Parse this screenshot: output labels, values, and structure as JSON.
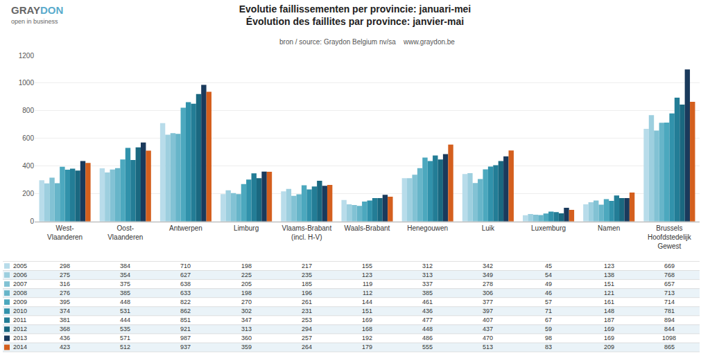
{
  "chart_data": {
    "type": "bar",
    "title": "Evolutie faillissementen per provincie: januari-mei\nÉvolution des faillites par province: janvier-mai",
    "subtitle": "bron / source: Graydon Belgium nv/sa    www.graydon.be",
    "annotations": [
      {
        "text": "GRAY",
        "color": "#666666"
      },
      {
        "text": "DON",
        "color": "#5aabcc"
      },
      {
        "text": "open in business",
        "color": "#666666"
      }
    ],
    "categories": [
      "West-\nVlaanderen",
      "Oost-\nVlaanderen",
      "Antwerpen",
      "Limburg",
      "Vlaams-Brabant\n(incl. H-V)",
      "Waals-Brabant",
      "Henegouwen",
      "Luik",
      "Luxemburg",
      "Namen",
      "Brussels\nHoofdstedelijk\nGewest"
    ],
    "series": [
      {
        "name": "2005",
        "color": "#b8dcea",
        "values": [
          298,
          384,
          710,
          198,
          217,
          155,
          312,
          342,
          45,
          123,
          669
        ]
      },
      {
        "name": "2006",
        "color": "#9dcfdf",
        "values": [
          275,
          354,
          627,
          225,
          235,
          123,
          313,
          349,
          54,
          138,
          768
        ]
      },
      {
        "name": "2007",
        "color": "#82c2d4",
        "values": [
          316,
          375,
          638,
          205,
          185,
          119,
          337,
          278,
          49,
          151,
          657
        ]
      },
      {
        "name": "2008",
        "color": "#67b5c9",
        "values": [
          276,
          385,
          633,
          198,
          196,
          112,
          385,
          306,
          46,
          121,
          713
        ]
      },
      {
        "name": "2009",
        "color": "#4ca8be",
        "values": [
          395,
          448,
          822,
          270,
          261,
          144,
          461,
          377,
          57,
          161,
          714
        ]
      },
      {
        "name": "2010",
        "color": "#3192ab",
        "values": [
          374,
          531,
          862,
          302,
          231,
          151,
          436,
          397,
          71,
          148,
          781
        ]
      },
      {
        "name": "2011",
        "color": "#237d96",
        "values": [
          381,
          444,
          851,
          347,
          253,
          169,
          477,
          407,
          67,
          187,
          894
        ]
      },
      {
        "name": "2012",
        "color": "#1a6880",
        "values": [
          368,
          535,
          921,
          313,
          294,
          168,
          448,
          437,
          59,
          169,
          844
        ]
      },
      {
        "name": "2013",
        "color": "#1a3a5c",
        "values": [
          436,
          571,
          987,
          360,
          257,
          192,
          486,
          470,
          98,
          169,
          1098
        ]
      },
      {
        "name": "2014",
        "color": "#d45f1e",
        "values": [
          423,
          512,
          937,
          359,
          264,
          179,
          555,
          513,
          83,
          209,
          865
        ]
      }
    ],
    "ylim": [
      0,
      1200
    ],
    "yticks": [
      0,
      200,
      400,
      600,
      800,
      1000,
      1200
    ],
    "grid": true
  }
}
